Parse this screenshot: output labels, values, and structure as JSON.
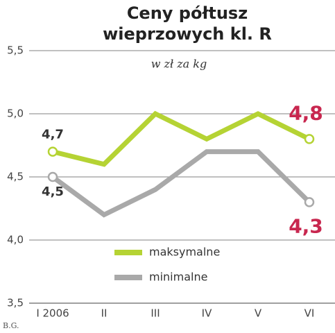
{
  "chart_data": {
    "type": "line",
    "title": [
      "Ceny półtusz",
      "wieprzowych kl. R"
    ],
    "subtitle": "w zł za kg",
    "credit": "B.G.",
    "categories": [
      "I 2006",
      "II",
      "III",
      "IV",
      "V",
      "VI"
    ],
    "series": [
      {
        "name": "maksymalne",
        "color": "#b5d334",
        "values": [
          4.7,
          4.6,
          5.0,
          4.8,
          5.0,
          4.8
        ],
        "value_labels": [
          "4,7",
          null,
          null,
          null,
          null,
          "4,8"
        ]
      },
      {
        "name": "minimalne",
        "color": "#a9a9a9",
        "values": [
          4.5,
          4.2,
          4.4,
          4.7,
          4.7,
          4.3
        ],
        "value_labels": [
          "4,5",
          null,
          null,
          null,
          null,
          "4,3"
        ]
      }
    ],
    "ylim": [
      3.5,
      5.5
    ],
    "yticks": [
      {
        "value": 3.5,
        "label": "3,5"
      },
      {
        "value": 4.0,
        "label": "4,0"
      },
      {
        "value": 4.5,
        "label": "4,5"
      },
      {
        "value": 5.0,
        "label": "5,0"
      },
      {
        "value": 5.5,
        "label": "5,5"
      }
    ],
    "grid": true
  }
}
